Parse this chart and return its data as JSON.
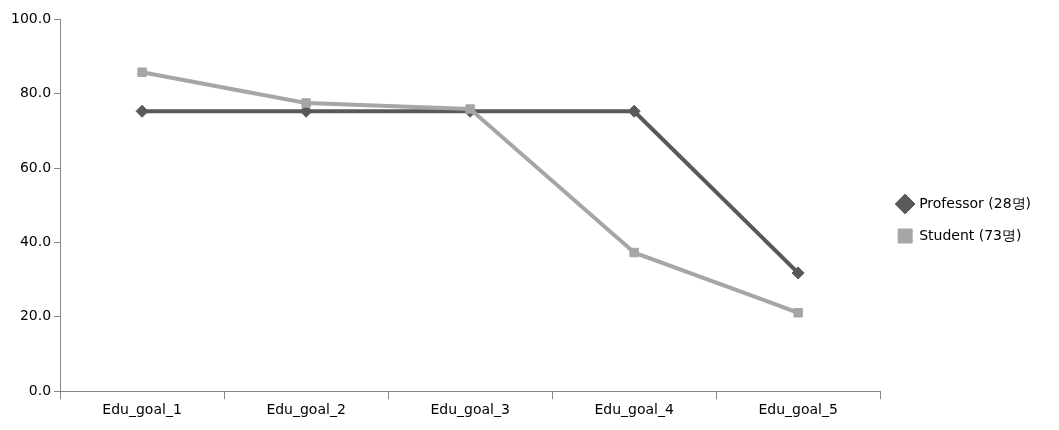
{
  "chart_data": {
    "type": "line",
    "categories": [
      "Edu_goal_1",
      "Edu_goal_2",
      "Edu_goal_3",
      "Edu_goal_4",
      "Edu_goal_5"
    ],
    "series": [
      {
        "name": "Professor (28명)",
        "color": "#595959",
        "marker": "diamond",
        "values": [
          75.3,
          75.3,
          75.3,
          75.3,
          31.8
        ]
      },
      {
        "name": "Student (73명)",
        "color": "#a6a6a6",
        "marker": "square",
        "values": [
          85.8,
          77.5,
          75.9,
          37.3,
          21.1
        ]
      }
    ],
    "ylim": [
      0,
      100
    ],
    "yticks": [
      {
        "value": 0,
        "label": "0.0"
      },
      {
        "value": 20,
        "label": "20.0"
      },
      {
        "value": 40,
        "label": "40.0"
      },
      {
        "value": 60,
        "label": "60.0"
      },
      {
        "value": 80,
        "label": "80.0"
      },
      {
        "value": 100,
        "label": "100.0"
      }
    ],
    "grid": false,
    "legend": "right",
    "line_style": "solid"
  }
}
